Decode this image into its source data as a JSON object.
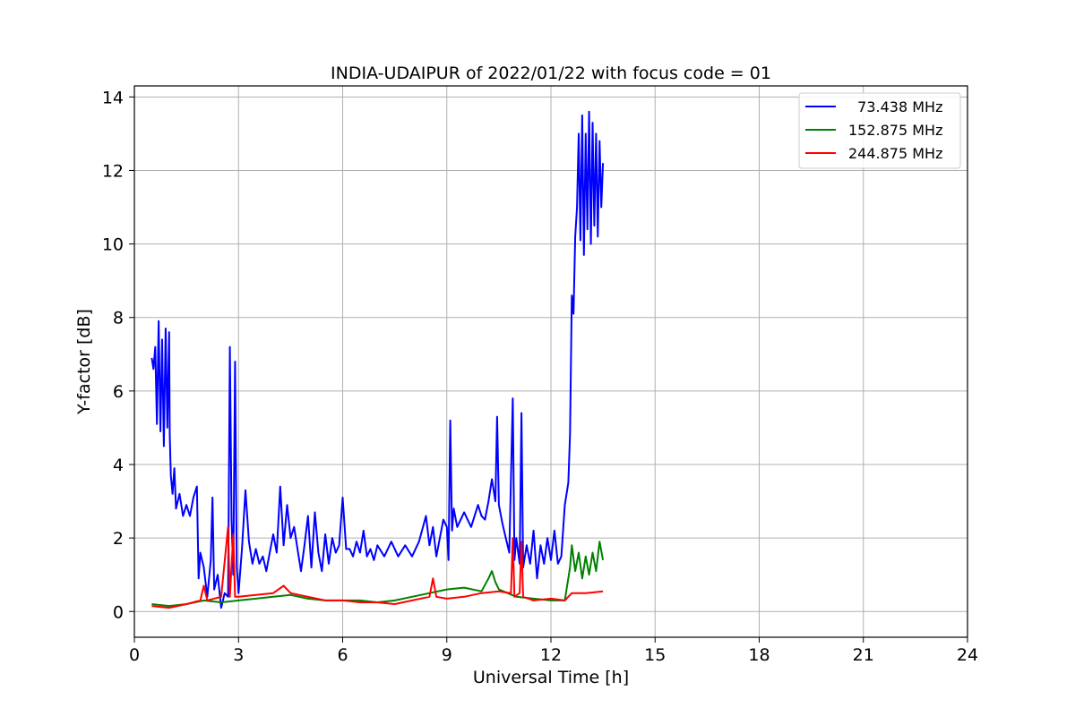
{
  "chart_data": {
    "type": "line",
    "title": "INDIA-UDAIPUR of 2022/01/22 with focus code = 01",
    "xlabel": "Universal Time [h]",
    "ylabel": "Y-factor [dB]",
    "xlim": [
      0,
      24
    ],
    "ylim": [
      -0.7,
      14.3
    ],
    "xticks": [
      0,
      3,
      6,
      9,
      12,
      15,
      18,
      21,
      24
    ],
    "yticks": [
      0,
      2,
      4,
      6,
      8,
      10,
      12,
      14
    ],
    "grid": true,
    "legend_position": "top-right",
    "series": [
      {
        "name": "  73.438 MHz",
        "color": "#0000ff",
        "points": [
          [
            0.5,
            6.9
          ],
          [
            0.55,
            6.6
          ],
          [
            0.6,
            7.2
          ],
          [
            0.65,
            5.1
          ],
          [
            0.7,
            7.9
          ],
          [
            0.75,
            4.9
          ],
          [
            0.8,
            7.4
          ],
          [
            0.85,
            4.5
          ],
          [
            0.9,
            7.7
          ],
          [
            0.95,
            5.0
          ],
          [
            1.0,
            7.6
          ],
          [
            1.02,
            4.8
          ],
          [
            1.05,
            3.7
          ],
          [
            1.1,
            3.2
          ],
          [
            1.15,
            3.9
          ],
          [
            1.2,
            2.8
          ],
          [
            1.3,
            3.2
          ],
          [
            1.4,
            2.6
          ],
          [
            1.5,
            2.9
          ],
          [
            1.6,
            2.6
          ],
          [
            1.7,
            3.1
          ],
          [
            1.8,
            3.4
          ],
          [
            1.85,
            0.9
          ],
          [
            1.9,
            1.6
          ],
          [
            2.0,
            1.2
          ],
          [
            2.1,
            0.4
          ],
          [
            2.2,
            1.4
          ],
          [
            2.25,
            3.1
          ],
          [
            2.3,
            0.6
          ],
          [
            2.4,
            1.0
          ],
          [
            2.5,
            0.1
          ],
          [
            2.6,
            0.5
          ],
          [
            2.7,
            0.4
          ],
          [
            2.75,
            7.2
          ],
          [
            2.8,
            2.5
          ],
          [
            2.85,
            1.0
          ],
          [
            2.9,
            6.8
          ],
          [
            2.95,
            1.2
          ],
          [
            3.0,
            0.5
          ],
          [
            3.1,
            1.7
          ],
          [
            3.2,
            3.3
          ],
          [
            3.3,
            1.9
          ],
          [
            3.4,
            1.3
          ],
          [
            3.5,
            1.7
          ],
          [
            3.6,
            1.3
          ],
          [
            3.7,
            1.5
          ],
          [
            3.8,
            1.1
          ],
          [
            3.9,
            1.6
          ],
          [
            4.0,
            2.1
          ],
          [
            4.1,
            1.6
          ],
          [
            4.2,
            3.4
          ],
          [
            4.3,
            1.8
          ],
          [
            4.4,
            2.9
          ],
          [
            4.5,
            2.0
          ],
          [
            4.6,
            2.3
          ],
          [
            4.7,
            1.7
          ],
          [
            4.8,
            1.1
          ],
          [
            4.9,
            1.8
          ],
          [
            5.0,
            2.6
          ],
          [
            5.1,
            1.2
          ],
          [
            5.2,
            2.7
          ],
          [
            5.3,
            1.6
          ],
          [
            5.4,
            1.1
          ],
          [
            5.5,
            2.1
          ],
          [
            5.6,
            1.3
          ],
          [
            5.7,
            2.0
          ],
          [
            5.8,
            1.6
          ],
          [
            5.9,
            1.8
          ],
          [
            6.0,
            3.1
          ],
          [
            6.1,
            1.7
          ],
          [
            6.2,
            1.7
          ],
          [
            6.3,
            1.5
          ],
          [
            6.4,
            1.9
          ],
          [
            6.5,
            1.6
          ],
          [
            6.6,
            2.2
          ],
          [
            6.7,
            1.5
          ],
          [
            6.8,
            1.7
          ],
          [
            6.9,
            1.4
          ],
          [
            7.0,
            1.8
          ],
          [
            7.2,
            1.5
          ],
          [
            7.4,
            1.9
          ],
          [
            7.6,
            1.5
          ],
          [
            7.8,
            1.8
          ],
          [
            8.0,
            1.5
          ],
          [
            8.2,
            1.9
          ],
          [
            8.4,
            2.6
          ],
          [
            8.5,
            1.8
          ],
          [
            8.6,
            2.3
          ],
          [
            8.7,
            1.5
          ],
          [
            8.8,
            2.0
          ],
          [
            8.9,
            2.5
          ],
          [
            9.0,
            2.3
          ],
          [
            9.05,
            1.4
          ],
          [
            9.1,
            5.2
          ],
          [
            9.15,
            2.2
          ],
          [
            9.2,
            2.8
          ],
          [
            9.3,
            2.3
          ],
          [
            9.5,
            2.7
          ],
          [
            9.7,
            2.3
          ],
          [
            9.9,
            2.9
          ],
          [
            10.0,
            2.6
          ],
          [
            10.1,
            2.5
          ],
          [
            10.2,
            3.0
          ],
          [
            10.3,
            3.6
          ],
          [
            10.4,
            3.0
          ],
          [
            10.45,
            5.3
          ],
          [
            10.5,
            2.9
          ],
          [
            10.6,
            2.4
          ],
          [
            10.7,
            2.0
          ],
          [
            10.8,
            1.6
          ],
          [
            10.9,
            5.8
          ],
          [
            10.95,
            1.4
          ],
          [
            11.0,
            2.0
          ],
          [
            11.1,
            1.3
          ],
          [
            11.15,
            5.4
          ],
          [
            11.2,
            1.2
          ],
          [
            11.3,
            1.8
          ],
          [
            11.4,
            1.3
          ],
          [
            11.5,
            2.2
          ],
          [
            11.6,
            0.9
          ],
          [
            11.7,
            1.8
          ],
          [
            11.8,
            1.3
          ],
          [
            11.9,
            2.0
          ],
          [
            12.0,
            1.4
          ],
          [
            12.1,
            2.2
          ],
          [
            12.2,
            1.3
          ],
          [
            12.3,
            1.5
          ],
          [
            12.4,
            2.9
          ],
          [
            12.5,
            3.5
          ],
          [
            12.55,
            4.8
          ],
          [
            12.6,
            8.6
          ],
          [
            12.65,
            8.1
          ],
          [
            12.7,
            10.2
          ],
          [
            12.75,
            11.0
          ],
          [
            12.8,
            13.0
          ],
          [
            12.85,
            10.1
          ],
          [
            12.9,
            13.5
          ],
          [
            12.95,
            9.7
          ],
          [
            13.0,
            13.0
          ],
          [
            13.05,
            10.4
          ],
          [
            13.1,
            13.6
          ],
          [
            13.15,
            10.0
          ],
          [
            13.2,
            13.3
          ],
          [
            13.25,
            10.5
          ],
          [
            13.3,
            13.0
          ],
          [
            13.35,
            10.2
          ],
          [
            13.4,
            12.8
          ],
          [
            13.45,
            11.0
          ],
          [
            13.5,
            12.2
          ]
        ]
      },
      {
        "name": "152.875 MHz",
        "color": "#008000",
        "points": [
          [
            0.5,
            0.2
          ],
          [
            1.0,
            0.15
          ],
          [
            1.5,
            0.2
          ],
          [
            2.0,
            0.3
          ],
          [
            2.5,
            0.25
          ],
          [
            3.0,
            0.3
          ],
          [
            3.5,
            0.35
          ],
          [
            4.0,
            0.4
          ],
          [
            4.5,
            0.45
          ],
          [
            5.0,
            0.35
          ],
          [
            5.5,
            0.3
          ],
          [
            6.0,
            0.3
          ],
          [
            6.5,
            0.3
          ],
          [
            7.0,
            0.25
          ],
          [
            7.5,
            0.3
          ],
          [
            8.0,
            0.4
          ],
          [
            8.5,
            0.5
          ],
          [
            9.0,
            0.6
          ],
          [
            9.5,
            0.65
          ],
          [
            10.0,
            0.55
          ],
          [
            10.2,
            0.9
          ],
          [
            10.3,
            1.1
          ],
          [
            10.4,
            0.8
          ],
          [
            10.5,
            0.6
          ],
          [
            11.0,
            0.4
          ],
          [
            11.5,
            0.35
          ],
          [
            12.0,
            0.3
          ],
          [
            12.4,
            0.3
          ],
          [
            12.55,
            1.2
          ],
          [
            12.6,
            1.8
          ],
          [
            12.7,
            1.1
          ],
          [
            12.8,
            1.6
          ],
          [
            12.9,
            0.9
          ],
          [
            13.0,
            1.5
          ],
          [
            13.1,
            1.0
          ],
          [
            13.2,
            1.6
          ],
          [
            13.3,
            1.1
          ],
          [
            13.4,
            1.9
          ],
          [
            13.5,
            1.4
          ]
        ]
      },
      {
        "name": "244.875 MHz",
        "color": "#ff0000",
        "points": [
          [
            0.5,
            0.15
          ],
          [
            1.0,
            0.1
          ],
          [
            1.5,
            0.2
          ],
          [
            1.9,
            0.3
          ],
          [
            2.0,
            0.7
          ],
          [
            2.1,
            0.3
          ],
          [
            2.5,
            0.4
          ],
          [
            2.7,
            2.3
          ],
          [
            2.75,
            0.4
          ],
          [
            2.85,
            2.1
          ],
          [
            2.9,
            0.4
          ],
          [
            3.0,
            0.4
          ],
          [
            3.5,
            0.45
          ],
          [
            4.0,
            0.5
          ],
          [
            4.3,
            0.7
          ],
          [
            4.5,
            0.5
          ],
          [
            5.0,
            0.4
          ],
          [
            5.5,
            0.3
          ],
          [
            6.0,
            0.3
          ],
          [
            6.5,
            0.25
          ],
          [
            7.0,
            0.25
          ],
          [
            7.5,
            0.2
          ],
          [
            8.0,
            0.3
          ],
          [
            8.5,
            0.4
          ],
          [
            8.6,
            0.9
          ],
          [
            8.7,
            0.4
          ],
          [
            9.0,
            0.35
          ],
          [
            9.5,
            0.4
          ],
          [
            10.0,
            0.5
          ],
          [
            10.5,
            0.55
          ],
          [
            10.85,
            0.5
          ],
          [
            10.9,
            2.0
          ],
          [
            10.95,
            0.4
          ],
          [
            11.1,
            0.5
          ],
          [
            11.15,
            1.9
          ],
          [
            11.2,
            0.4
          ],
          [
            11.5,
            0.3
          ],
          [
            12.0,
            0.35
          ],
          [
            12.4,
            0.3
          ],
          [
            12.6,
            0.5
          ],
          [
            13.0,
            0.5
          ],
          [
            13.5,
            0.55
          ]
        ]
      }
    ]
  }
}
